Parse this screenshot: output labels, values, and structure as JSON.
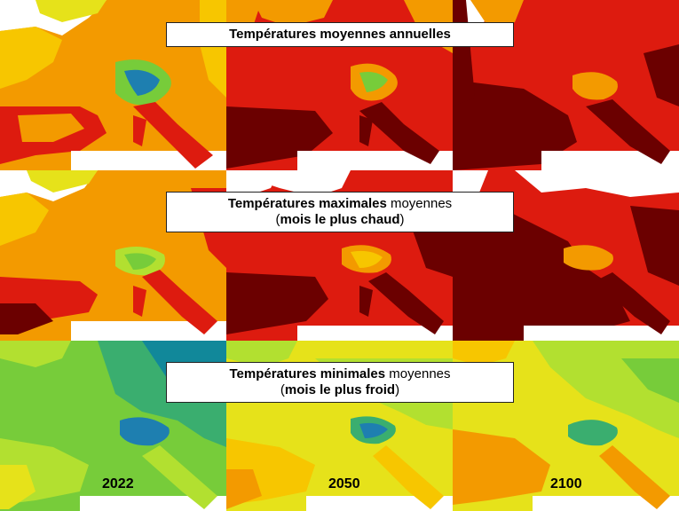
{
  "banners": {
    "row1": {
      "bold": "Températures moyennes annuelles",
      "normal": ""
    },
    "row2": {
      "bold": "Températures maximales",
      "normal": " moyennes",
      "paren_open": "(",
      "paren_bold": "mois le plus chaud",
      "paren_close": ")"
    },
    "row3": {
      "bold": "Températures minimales",
      "normal": " moyennes",
      "paren_open": "(",
      "paren_bold": "mois le plus froid",
      "paren_close": ")"
    }
  },
  "years": [
    "2022",
    "2050",
    "2100"
  ],
  "palette": {
    "ocean": "#ffffff",
    "darkred": "#6b0000",
    "red": "#dd1b0f",
    "orange": "#f39a00",
    "lightorange": "#f7c600",
    "yellow": "#e6e21a",
    "lightgreen": "#b2e030",
    "green": "#77cc3a",
    "teal": "#3aae6f",
    "blue": "#1e7fb0",
    "darkteal": "#11889a",
    "lightblue": "#5fb7d3"
  },
  "grid": {
    "rows": [
      [
        "mean-2022",
        "mean-2050",
        "mean-2100"
      ],
      [
        "max-2022",
        "max-2050",
        "max-2100"
      ],
      [
        "min-2022",
        "min-2050",
        "min-2100"
      ]
    ]
  }
}
